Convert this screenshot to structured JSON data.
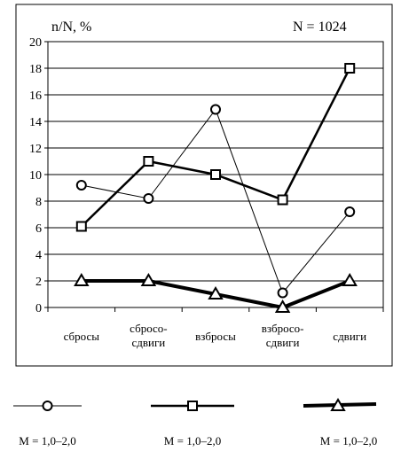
{
  "chart_data": {
    "type": "line",
    "title": "",
    "ylabel": "n/N, %",
    "annotation": "N = 1024",
    "categories": [
      "сбросы",
      "сбросо-\nсдвиги",
      "взбросы",
      "взбросо-\nсдвиги",
      "сдвиги"
    ],
    "ylim": [
      0,
      20
    ],
    "yticks": [
      0,
      2,
      4,
      6,
      8,
      10,
      12,
      14,
      16,
      18,
      20
    ],
    "grid": "horizontal",
    "series": [
      {
        "name": "M = 1,0–2,0",
        "marker": "circle",
        "values": [
          9.2,
          8.2,
          14.9,
          1.1,
          7.2
        ]
      },
      {
        "name": "M = 1,0–2,0",
        "marker": "square",
        "values": [
          6.1,
          11.0,
          10.0,
          8.1,
          18.0
        ]
      },
      {
        "name": "M = 1,0–2,0",
        "marker": "triangle",
        "values": [
          2.0,
          2.0,
          1.0,
          0.0,
          2.0
        ]
      }
    ],
    "legend_placement": "bottom"
  }
}
